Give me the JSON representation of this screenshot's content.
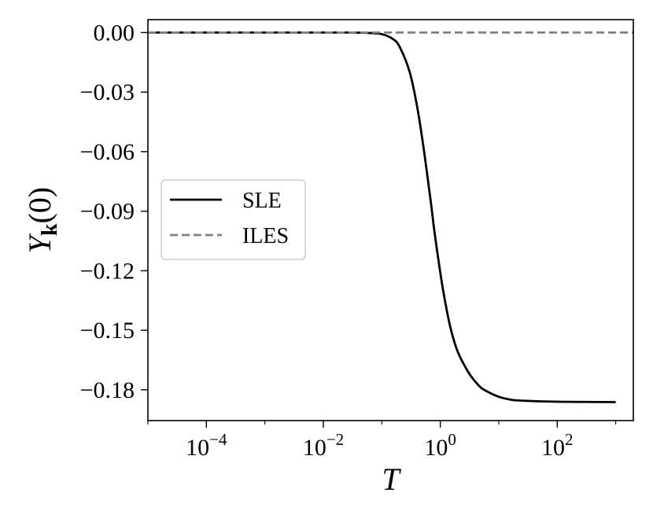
{
  "chart_data": {
    "type": "line",
    "xscale": "log",
    "xlim": [
      1e-05,
      2000
    ],
    "ylim": [
      -0.1955,
      0.0065
    ],
    "xlabel": "T",
    "ylabel": "Y_k(0)",
    "ylabel_parts": {
      "main": "Y",
      "sub": "k",
      "rest": "(0)"
    },
    "xticks": [
      {
        "value": 0.0001,
        "base": "10",
        "exp": "−4"
      },
      {
        "value": 0.01,
        "base": "10",
        "exp": "−2"
      },
      {
        "value": 1,
        "base": "10",
        "exp": "0"
      },
      {
        "value": 100,
        "base": "10",
        "exp": "2"
      }
    ],
    "yticks": [
      {
        "value": 0.0,
        "label": "0.00"
      },
      {
        "value": -0.03,
        "label": "−0.03"
      },
      {
        "value": -0.06,
        "label": "−0.06"
      },
      {
        "value": -0.09,
        "label": "−0.09"
      },
      {
        "value": -0.12,
        "label": "−0.12"
      },
      {
        "value": -0.15,
        "label": "−0.15"
      },
      {
        "value": -0.18,
        "label": "−0.18"
      }
    ],
    "grid": false,
    "legend": {
      "position": "center-left"
    },
    "series": [
      {
        "name": "SLE",
        "style": "solid",
        "color": "#000000",
        "x": [
          1e-05,
          0.0001,
          0.001,
          0.01,
          0.03,
          0.06,
          0.1,
          0.15,
          0.2,
          0.3,
          0.4,
          0.5,
          0.6,
          0.7,
          0.8,
          1.0,
          1.2,
          1.5,
          2,
          3,
          4,
          5,
          7,
          10,
          15,
          20,
          50,
          100,
          300,
          1000
        ],
        "y": [
          0.0,
          0.0,
          0.0,
          0.0,
          0.0,
          -0.0002,
          -0.0008,
          -0.003,
          -0.007,
          -0.02,
          -0.037,
          -0.055,
          -0.072,
          -0.087,
          -0.101,
          -0.121,
          -0.135,
          -0.149,
          -0.161,
          -0.171,
          -0.176,
          -0.179,
          -0.1815,
          -0.1835,
          -0.1848,
          -0.1853,
          -0.1858,
          -0.186,
          -0.1861,
          -0.1862
        ]
      },
      {
        "name": "ILES",
        "style": "dashed",
        "color": "#808080",
        "x": [
          1e-05,
          2000
        ],
        "y": [
          0.0,
          0.0
        ]
      }
    ]
  }
}
